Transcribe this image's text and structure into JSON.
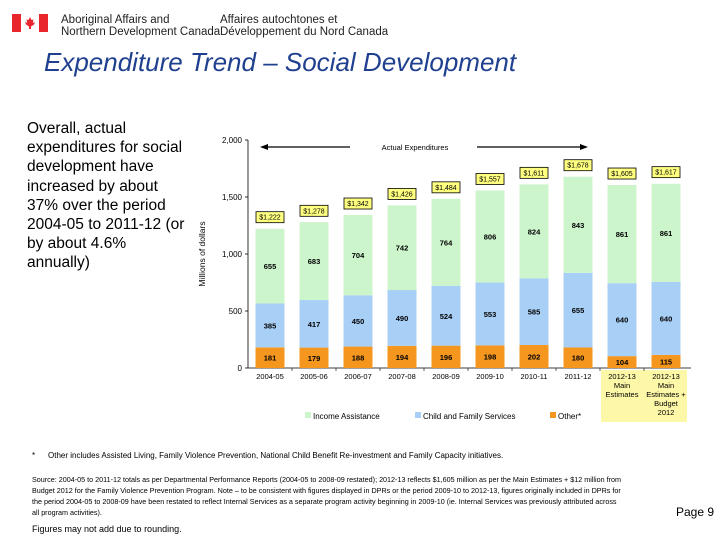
{
  "header": {
    "dept_en_line1": "Aboriginal Affairs and",
    "dept_en_line2": "Northern Development Canada",
    "dept_fr_line1": "Affaires autochtones et",
    "dept_fr_line2": "Développement du Nord Canada",
    "flag_color": "#e8262c"
  },
  "title": "Expenditure Trend – Social Development",
  "summary": "Overall, actual expenditures for social development have increased by about 37% over the period 2004-05 to 2011-12 (or by about 4.6% annually)",
  "chart_data": {
    "type": "bar",
    "stacked": true,
    "ylabel": "Millions of dollars",
    "ylim": [
      0,
      2000
    ],
    "yticks": [
      "0",
      "500",
      "1,000",
      "1,500",
      "2,000"
    ],
    "annotation": "Actual Expenditures",
    "categories": [
      "2004-05",
      "2005-06",
      "2006-07",
      "2007-08",
      "2008-09",
      "2009-10",
      "2010-11",
      "2011-12",
      "2012-13 Main Estimates",
      "2012-13 Main Estimates + Budget 2012"
    ],
    "highlighted_categories": [
      "2012-13 Main Estimates",
      "2012-13 Main Estimates + Budget 2012"
    ],
    "series": [
      {
        "name": "Other*",
        "color": "#f5961e",
        "values": [
          181,
          179,
          188,
          194,
          196,
          198,
          202,
          180,
          104,
          115
        ]
      },
      {
        "name": "Child and Family Services",
        "color": "#a8cff5",
        "values": [
          385,
          417,
          450,
          490,
          524,
          553,
          585,
          655,
          640,
          640
        ]
      },
      {
        "name": "Income Assistance",
        "color": "#ccf5cc",
        "values": [
          655,
          683,
          704,
          742,
          764,
          806,
          824,
          843,
          861,
          861
        ]
      }
    ],
    "totals": [
      "$1,222",
      "$1,278",
      "$1,342",
      "$1,426",
      "$1,484",
      "$1,557",
      "$1,611",
      "$1,678",
      "$1,605",
      "$1,617"
    ],
    "total_values": [
      1222,
      1278,
      1342,
      1426,
      1484,
      1557,
      1611,
      1678,
      1605,
      1617
    ],
    "legend_placement": "bottom",
    "grid": false
  },
  "footnote_marker": "*",
  "footnote": "Other includes Assisted Living, Family Violence Prevention, National Child Benefit Re-investment and Family Capacity initiatives.",
  "source": "Source: 2004-05 to 2011-12 totals as per Departmental Performance Reports (2004-05 to 2008-09 restated); 2012-13 reflects $1,605 million as per the Main Estimates + $12 million from Budget 2012 for the Family Violence Prevention Program. Note – to be consistent with figures displayed in DPRs or the period 2009-10 to 2012-13, figures originally included in DPRs for the period 2004-05 to 2008-09 have been restated to reflect Internal Services as a separate program activity beginning in 2009-10 (ie. Internal Services was previously attributed across all program activities).",
  "rounding_note": "Figures may not add due to rounding.",
  "page_label": "Page 9"
}
